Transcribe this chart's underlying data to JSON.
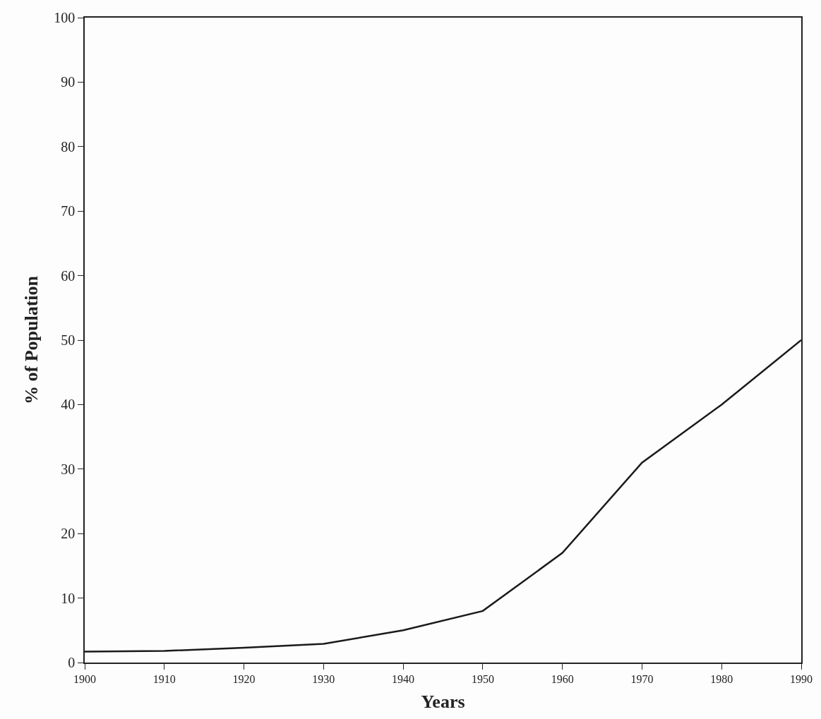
{
  "chart_data": {
    "type": "line",
    "xlabel": "Years",
    "ylabel": "% of Population",
    "x": [
      1900,
      1910,
      1920,
      1930,
      1940,
      1950,
      1960,
      1970,
      1980,
      1990
    ],
    "series": [
      {
        "color": "#1a1a1a",
        "values": [
          1.7,
          1.8,
          2.3,
          2.9,
          5,
          8,
          17,
          31,
          40,
          50
        ]
      }
    ],
    "xlim": [
      1900,
      1990
    ],
    "xticks": [
      1900,
      1910,
      1920,
      1930,
      1940,
      1950,
      1960,
      1970,
      1980,
      1990
    ],
    "ylim": [
      0,
      100
    ],
    "yticks": [
      0,
      10,
      20,
      30,
      40,
      50,
      60,
      70,
      80,
      90,
      100
    ],
    "marker": "none",
    "line_style": "solid"
  }
}
